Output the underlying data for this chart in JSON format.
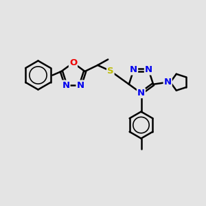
{
  "background_color": "#e4e4e4",
  "atom_colors": {
    "C": "#000000",
    "N": "#0000ee",
    "O": "#ee0000",
    "S": "#bbbb00"
  },
  "bond_color": "#000000",
  "bond_width": 1.8,
  "figsize": [
    3.0,
    3.0
  ],
  "dpi": 100,
  "xlim": [
    0,
    10
  ],
  "ylim": [
    0,
    10
  ]
}
